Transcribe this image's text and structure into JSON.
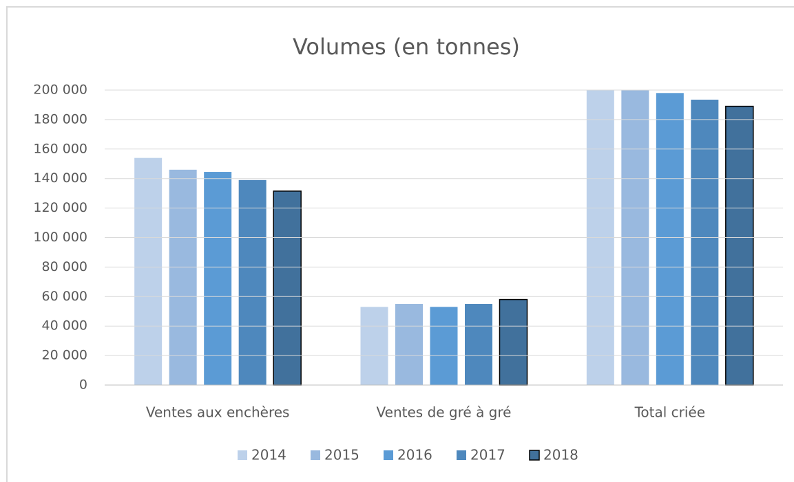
{
  "chart_data": {
    "type": "bar",
    "title": "Volumes (en tonnes)",
    "categories": [
      "Ventes aux enchères",
      "Ventes de gré à gré",
      "Total criée"
    ],
    "series": [
      {
        "name": "2014",
        "color": "#bdd1ea",
        "values": [
          154000,
          53000,
          207000
        ]
      },
      {
        "name": "2015",
        "color": "#99b9df",
        "values": [
          146000,
          55000,
          201000
        ]
      },
      {
        "name": "2016",
        "color": "#5b9bd5",
        "values": [
          144500,
          53000,
          198000
        ]
      },
      {
        "name": "2017",
        "color": "#4e88bd",
        "values": [
          139000,
          55000,
          193500
        ]
      },
      {
        "name": "2018",
        "color": "#41719c",
        "values": [
          131500,
          58000,
          189000
        ]
      }
    ],
    "ylim": [
      0,
      200000
    ],
    "yticks": [
      0,
      {
        "value": 20000,
        "label": "20 000"
      },
      {
        "value": 40000,
        "label": "40 000"
      },
      {
        "value": 60000,
        "label": "60 000"
      },
      {
        "value": 80000,
        "label": "80 000"
      },
      {
        "value": 100000,
        "label": "100 000"
      },
      {
        "value": 120000,
        "label": "120 000"
      },
      {
        "value": 140000,
        "label": "140 000"
      },
      {
        "value": 160000,
        "label": "160 000"
      },
      {
        "value": 180000,
        "label": "180 000"
      },
      {
        "value": 200000,
        "label": "200 000"
      }
    ],
    "grid": true,
    "legend": "bottom"
  }
}
